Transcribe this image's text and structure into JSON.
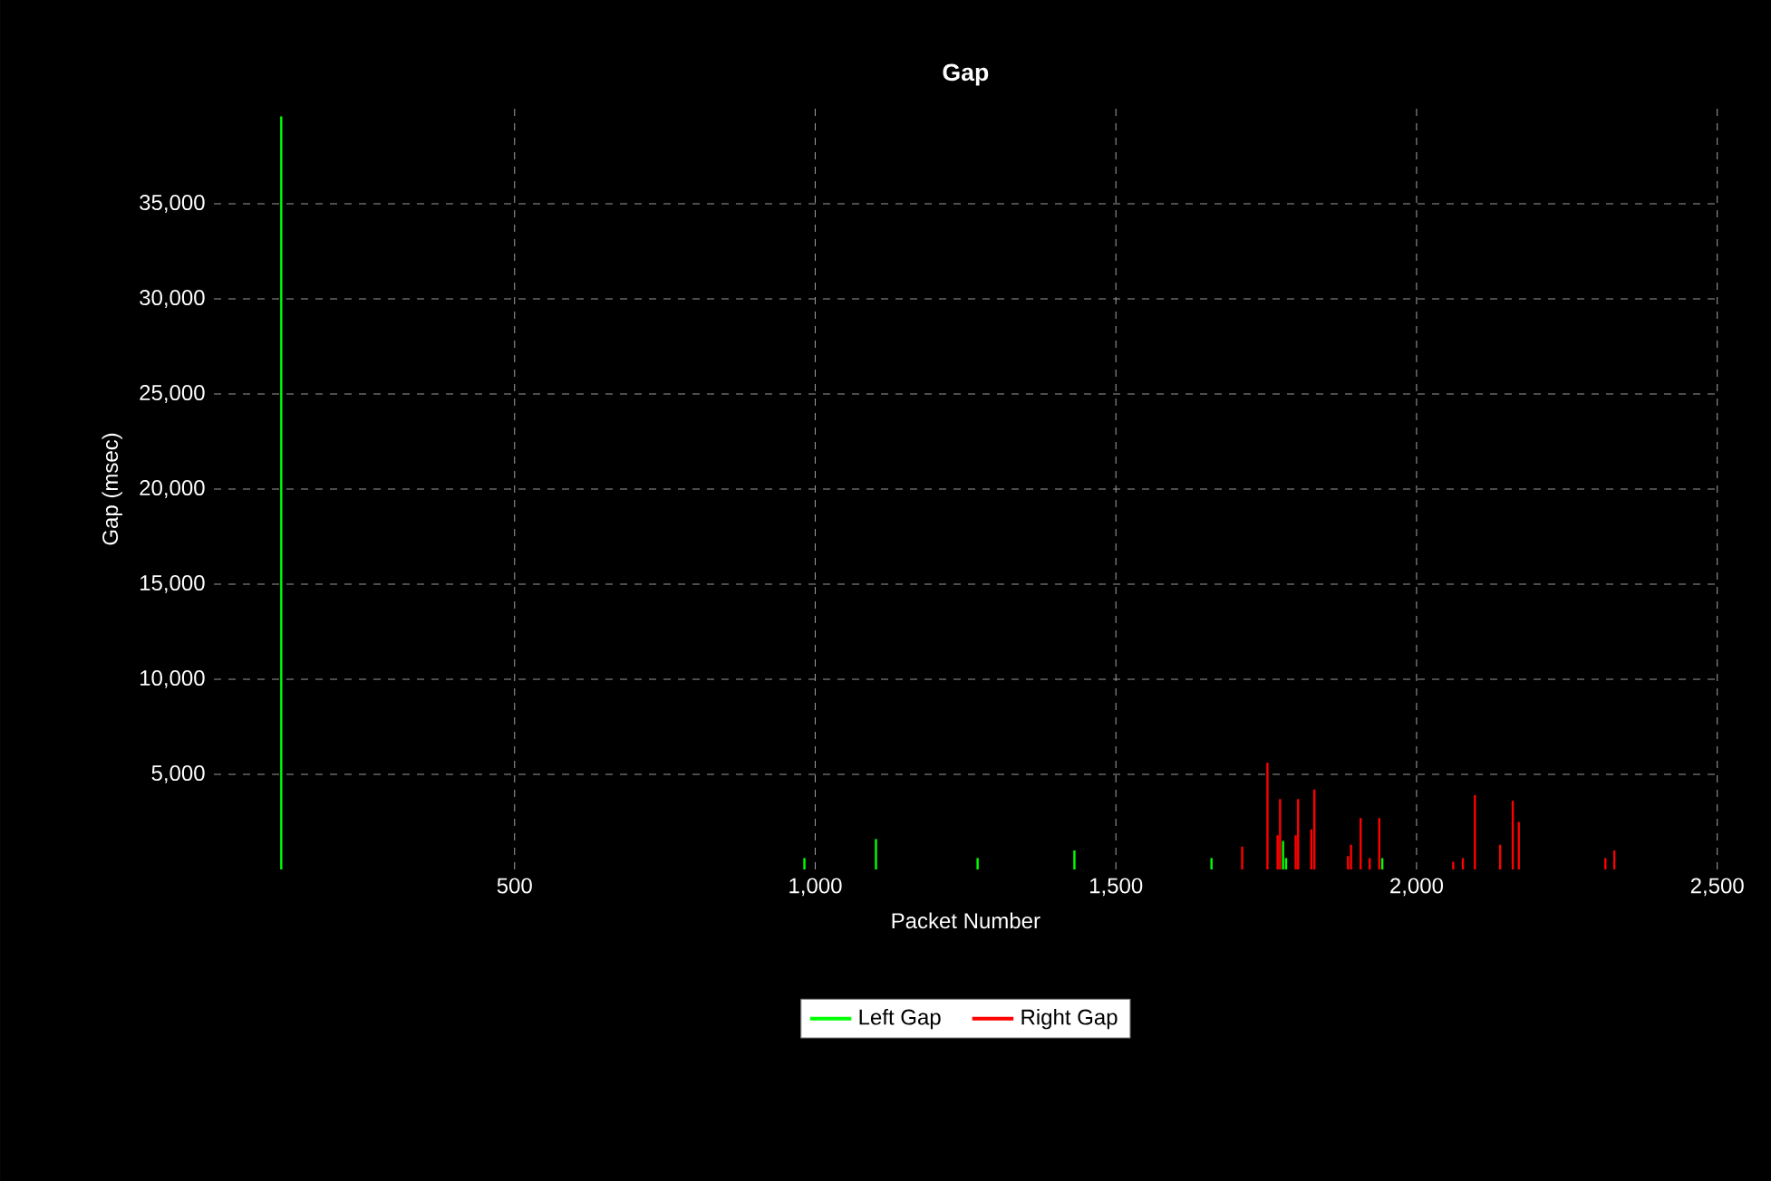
{
  "chart_data": {
    "type": "bar",
    "title": "Gap",
    "xlabel": "Packet Number",
    "ylabel": "Gap (msec)",
    "xlim": [
      0,
      2500
    ],
    "ylim": [
      0,
      40000
    ],
    "xticks": [
      {
        "value": 500,
        "label": "500"
      },
      {
        "value": 1000,
        "label": "1,000"
      },
      {
        "value": 1500,
        "label": "1,500"
      },
      {
        "value": 2000,
        "label": "2,000"
      },
      {
        "value": 2500,
        "label": "2,500"
      }
    ],
    "yticks": [
      {
        "value": 5000,
        "label": "5,000"
      },
      {
        "value": 10000,
        "label": "10,000"
      },
      {
        "value": 15000,
        "label": "15,000"
      },
      {
        "value": 20000,
        "label": "20,000"
      },
      {
        "value": 25000,
        "label": "25,000"
      },
      {
        "value": 30000,
        "label": "30,000"
      },
      {
        "value": 35000,
        "label": "35,000"
      }
    ],
    "grid": true,
    "legend": "bottom",
    "series": [
      {
        "name": "Right Gap",
        "color": "#ff0000",
        "x": [
          1710,
          1752,
          1769,
          1773,
          1799,
          1803,
          1825,
          1830,
          1886,
          1891,
          1907,
          1922,
          1938,
          2061,
          2077,
          2097,
          2139,
          2160,
          2170,
          2314,
          2329
        ],
        "values": [
          1200,
          5600,
          1800,
          3700,
          1800,
          3700,
          2100,
          4200,
          700,
          1300,
          2700,
          600,
          2700,
          400,
          600,
          3900,
          1300,
          3600,
          2500,
          600,
          1000
        ]
      },
      {
        "name": "Left Gap",
        "color": "#00ff00",
        "x": [
          112,
          982,
          1101,
          1270,
          1431,
          1659,
          1778,
          1783,
          1943
        ],
        "values": [
          39600,
          600,
          1600,
          600,
          1000,
          600,
          1500,
          600,
          600
        ]
      }
    ]
  }
}
